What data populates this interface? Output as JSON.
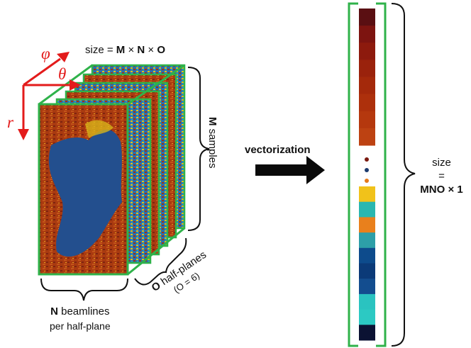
{
  "size_label": {
    "prefix": "size = ",
    "M": "M",
    "x1": " × ",
    "N": "N",
    "x2": " × ",
    "O": "O"
  },
  "axes": {
    "phi": "φ",
    "theta": "θ",
    "r": "r"
  },
  "m_samples": {
    "bold": "M",
    "text": " samples"
  },
  "n_beamlines": {
    "bold": "N",
    "text": " beamlines",
    "sub": "per half-plane"
  },
  "o_halfplanes": {
    "bold": "O",
    "text": " half-planes",
    "sub": "(O = 6)"
  },
  "arrow_label": "vectorization",
  "vector_size": {
    "line1": "size",
    "line2": "=",
    "line3": "MNO × 1"
  },
  "colors": {
    "frame": "#2fb24a",
    "axis": "#e31b1b",
    "vector_cells": [
      "#5a0f12",
      "#7d1410",
      "#8d1a0d",
      "#9a220c",
      "#a4290b",
      "#ad300c",
      "#b5380e",
      "#bd4212"
    ],
    "dots": [
      "#7a1a10",
      "#1b3a6e",
      "#e67a1a"
    ],
    "vector_cells_bottom": [
      "#f1c21a",
      "#2ab7b0",
      "#e9801c",
      "#2d9fa8",
      "#0d4b8c",
      "#0b3a78",
      "#134d8f",
      "#2ac3c0",
      "#2cc9c3",
      "#0b1233"
    ]
  }
}
